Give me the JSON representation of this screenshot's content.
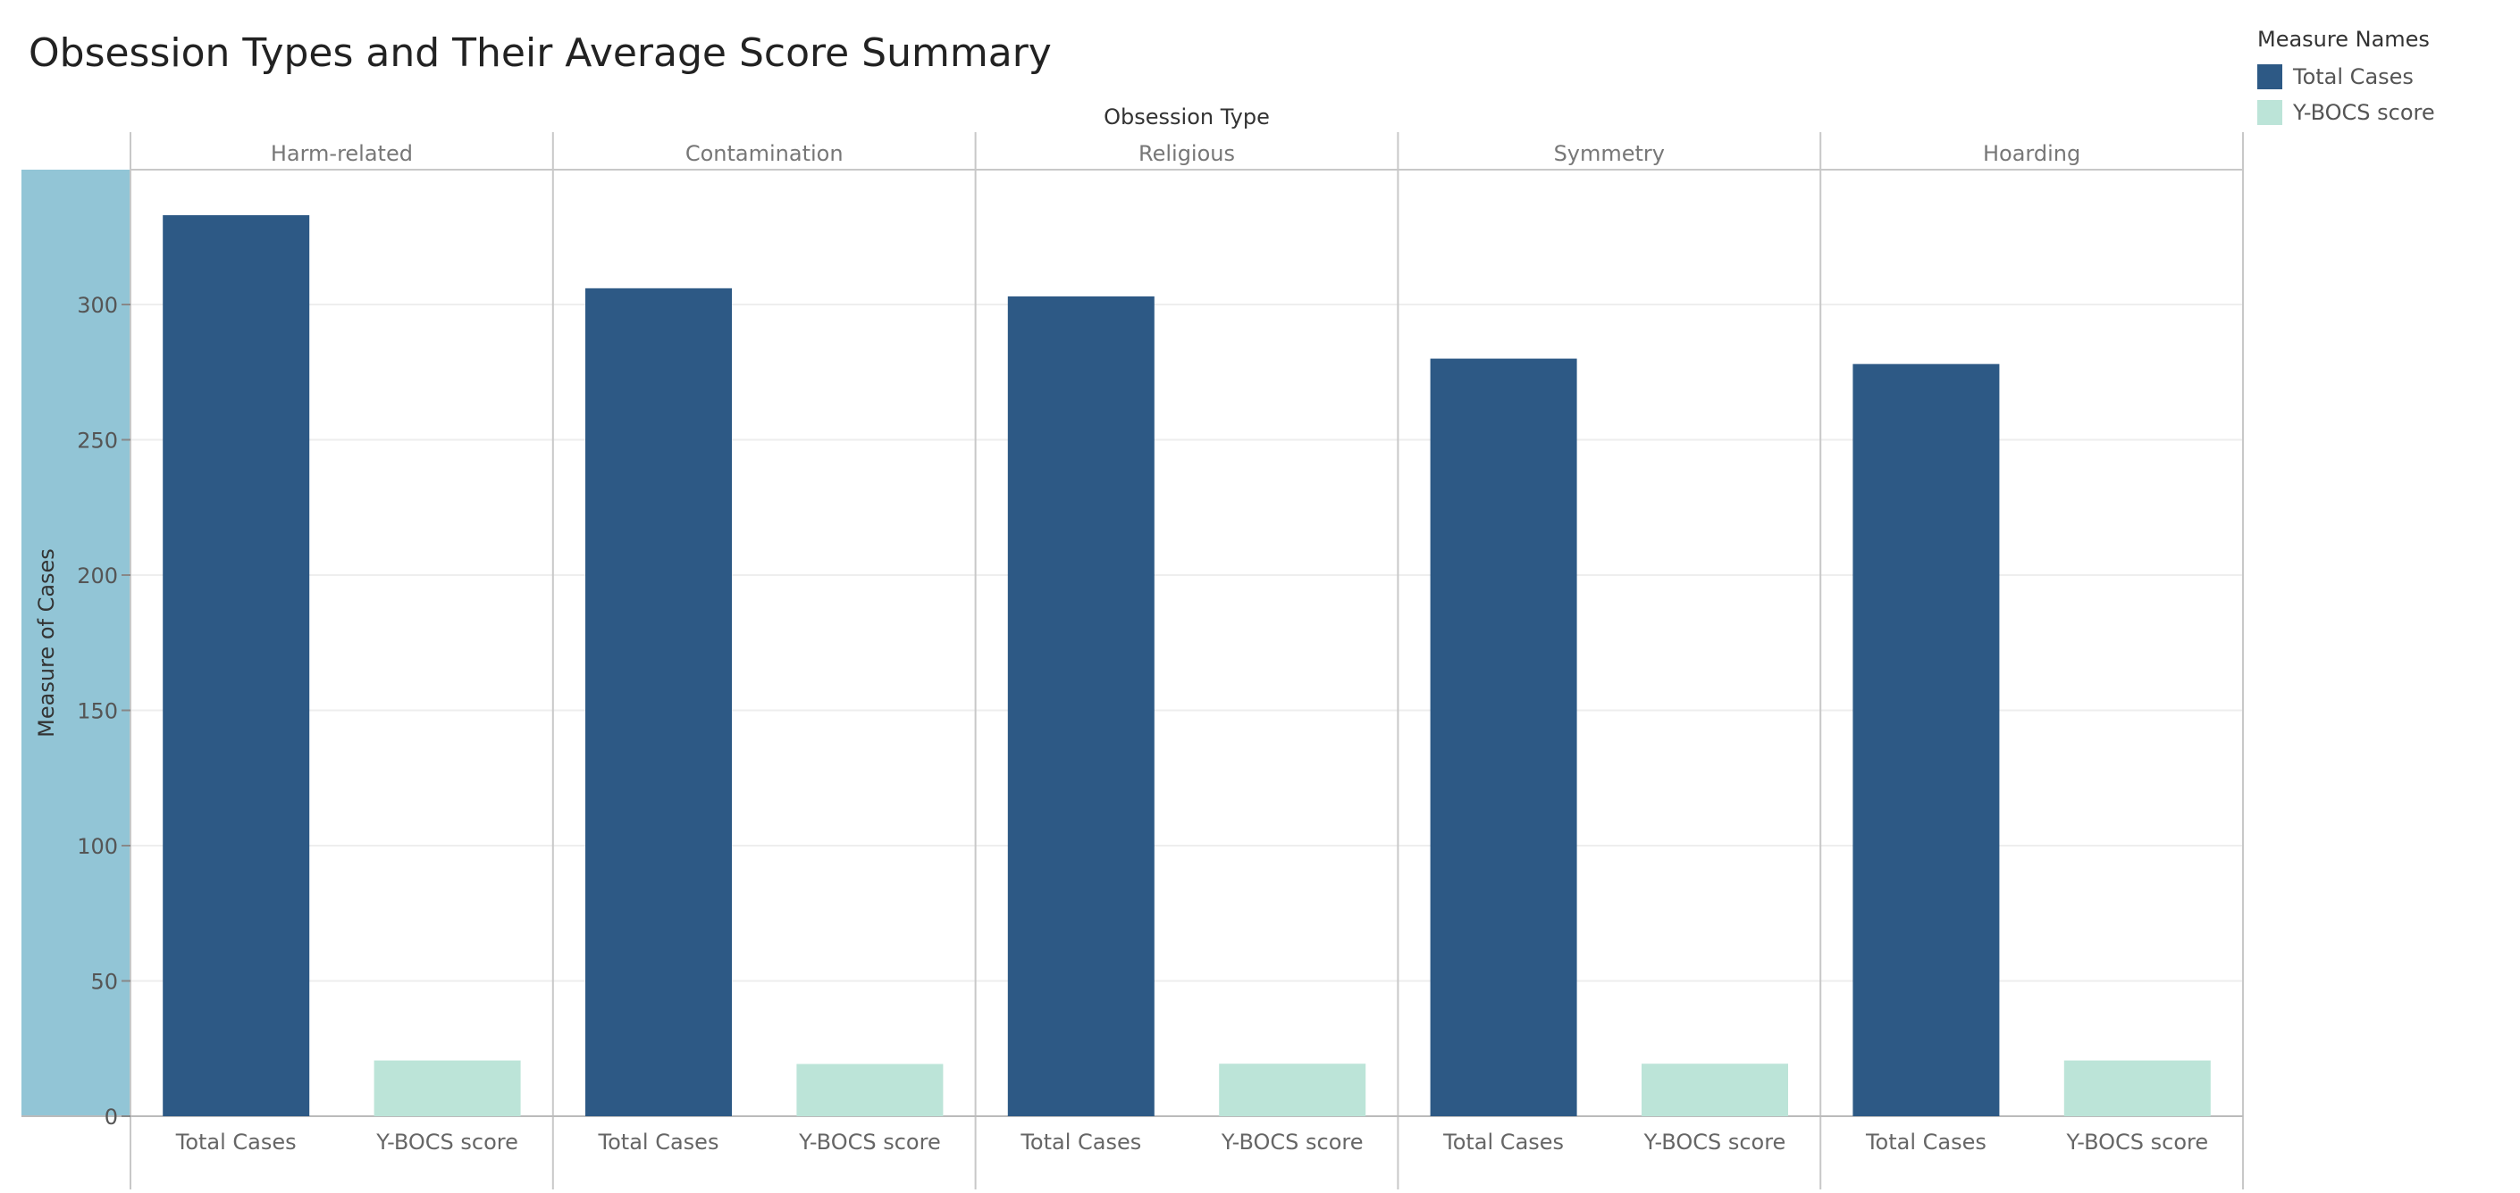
{
  "chart_data": {
    "type": "bar",
    "title": "Obsession Types and Their Average Score Summary",
    "column_header": "Obsession Type",
    "ylabel": "Measure of Cases",
    "ylim": [
      0,
      350
    ],
    "yticks": [
      0,
      50,
      100,
      150,
      200,
      250,
      300
    ],
    "grid": true,
    "legend_placement": "top-right",
    "legend_title": "Measure Names",
    "groups": [
      "Harm-related",
      "Contamination",
      "Religious",
      "Symmetry",
      "Hoarding"
    ],
    "measures": [
      "Total Cases",
      "Y-BOCS score"
    ],
    "series": [
      {
        "name": "Total Cases",
        "color": "#2d5985",
        "values": [
          333,
          306,
          303,
          280,
          278
        ]
      },
      {
        "name": "Y-BOCS score",
        "color": "#bce4d8",
        "values": [
          20.6,
          19.3,
          19.4,
          19.4,
          20.6
        ]
      }
    ],
    "colors": {
      "axis_highlight": "#92c5d6",
      "grid": "#eeeeee",
      "divider": "#c8c8c8"
    }
  }
}
